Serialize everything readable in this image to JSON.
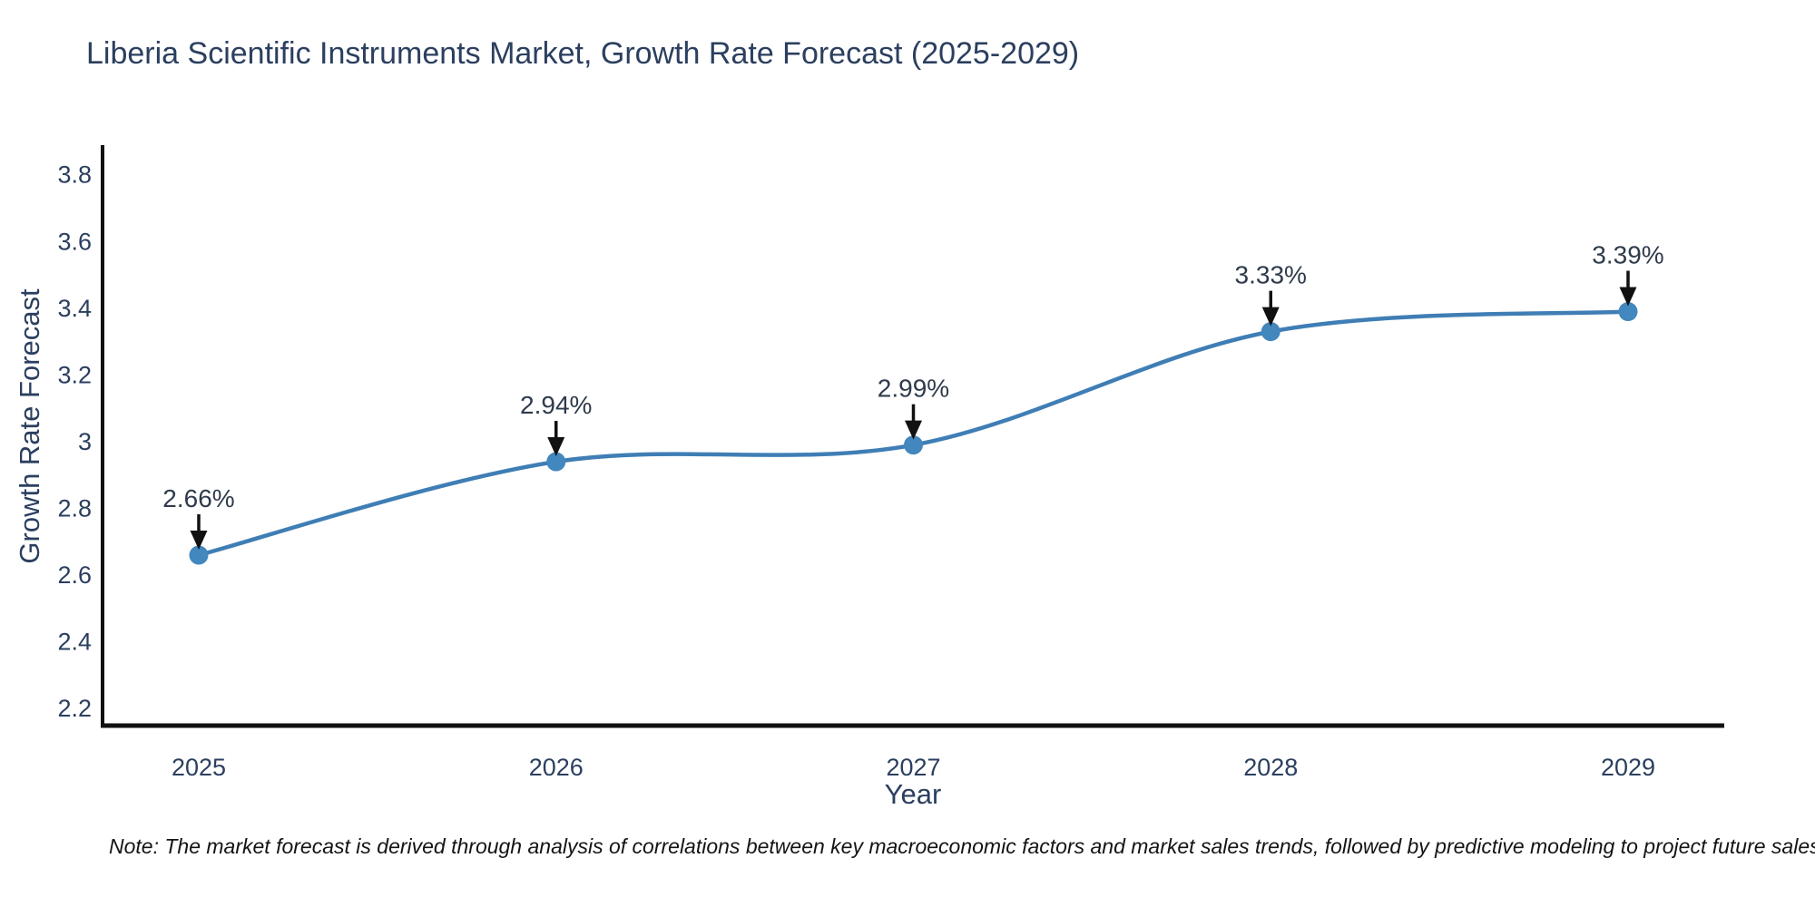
{
  "title": "Liberia Scientific Instruments Market, Growth Rate Forecast (2025-2029)",
  "note": "Note: The market forecast is derived through analysis of correlations between key macroeconomic factors and market sales trends, followed by predictive modeling to project future sales",
  "colors": {
    "line": "#3f7eb5",
    "marker": "#4287bd",
    "axis": "#111111",
    "text": "#2b3f5f",
    "annotation_text": "#2f3b4c",
    "arrow": "#111111",
    "background": "#ffffff"
  },
  "chart_data": {
    "type": "line",
    "title": "Liberia Scientific Instruments Market, Growth Rate Forecast (2025-2029)",
    "xlabel": "Year",
    "ylabel": "Growth Rate Forecast",
    "categories": [
      2025,
      2026,
      2027,
      2028,
      2029
    ],
    "series": [
      {
        "name": "Growth Rate Forecast",
        "values": [
          2.66,
          2.94,
          2.99,
          3.33,
          3.39
        ],
        "point_labels": [
          "2.66%",
          "2.94%",
          "2.99%",
          "3.33%",
          "3.39%"
        ]
      }
    ],
    "yticks": [
      2.2,
      2.4,
      2.6,
      2.8,
      3,
      3.2,
      3.4,
      3.6,
      3.8
    ],
    "ylim": [
      2.149,
      3.889
    ],
    "line_shape": "spline",
    "markers": true,
    "grid": false,
    "legend": false,
    "annotations": "value labels with downward arrows above each point"
  }
}
